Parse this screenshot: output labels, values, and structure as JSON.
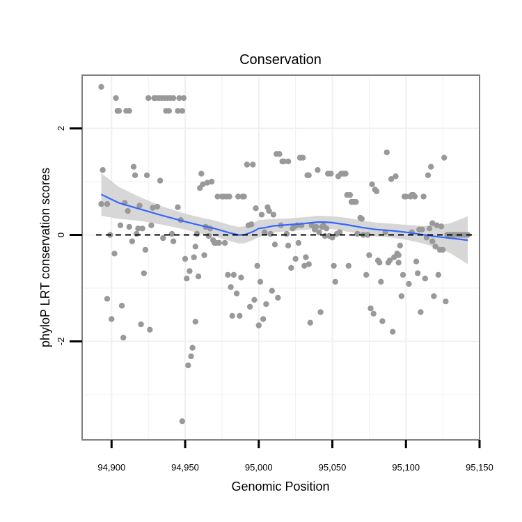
{
  "chart_data": {
    "type": "scatter",
    "title": "Conservation",
    "xlabel": "Genomic Position",
    "ylabel": "phyloP LRT conservation scores",
    "xlim": [
      94880,
      95150
    ],
    "ylim": [
      -3.85,
      3.0
    ],
    "x_ticks": [
      94900,
      94950,
      95000,
      95050,
      95100,
      95150
    ],
    "x_tick_labels": [
      "94,900",
      "94,950",
      "95,000",
      "95,050",
      "95,100",
      "95,150"
    ],
    "y_ticks": [
      -2,
      0,
      2
    ],
    "y_tick_labels": [
      "-2",
      "0",
      "2"
    ],
    "grid": true,
    "reference_line": {
      "y": 0,
      "style": "dashed"
    },
    "colors": {
      "points": "#999999",
      "smooth_line": "#3366ff",
      "ribbon": "#d3d3d3",
      "panel_border": "#808080",
      "grid": "#f0f0f0"
    },
    "points": [
      [
        94893,
        2.78
      ],
      [
        94894,
        1.22
      ],
      [
        94893,
        0.58
      ],
      [
        94897,
        0.58
      ],
      [
        94897,
        -1.2
      ],
      [
        94899,
        0.0
      ],
      [
        94900,
        -1.58
      ],
      [
        94902,
        -0.35
      ],
      [
        94903,
        2.57
      ],
      [
        94904,
        2.33
      ],
      [
        94905,
        2.33
      ],
      [
        94906,
        0.18
      ],
      [
        94907,
        -1.33
      ],
      [
        94908,
        -1.93
      ],
      [
        94909,
        0.6
      ],
      [
        94910,
        2.33
      ],
      [
        94911,
        0.45
      ],
      [
        94912,
        2.33
      ],
      [
        94912,
        0.15
      ],
      [
        94914,
        -0.12
      ],
      [
        94915,
        1.28
      ],
      [
        94916,
        1.12
      ],
      [
        94917,
        0.02
      ],
      [
        94918,
        0.12
      ],
      [
        94919,
        0.55
      ],
      [
        94920,
        -1.68
      ],
      [
        94921,
        0.12
      ],
      [
        94922,
        -0.72
      ],
      [
        94923,
        -0.28
      ],
      [
        94924,
        1.12
      ],
      [
        94925,
        2.57
      ],
      [
        94926,
        -1.78
      ],
      [
        94927,
        0.18
      ],
      [
        94928,
        0.51
      ],
      [
        94929,
        2.57
      ],
      [
        94930,
        2.57
      ],
      [
        94931,
        0.53
      ],
      [
        94932,
        2.57
      ],
      [
        94933,
        1.02
      ],
      [
        94934,
        2.57
      ],
      [
        94935,
        -0.06
      ],
      [
        94936,
        2.57
      ],
      [
        94937,
        2.33
      ],
      [
        94938,
        2.57
      ],
      [
        94939,
        2.33
      ],
      [
        94940,
        2.57
      ],
      [
        94941,
        0.02
      ],
      [
        94942,
        2.57
      ],
      [
        94942,
        -0.12
      ],
      [
        94945,
        2.33
      ],
      [
        94945,
        0.52
      ],
      [
        94946,
        2.57
      ],
      [
        94947,
        0.28
      ],
      [
        94948,
        2.33
      ],
      [
        94949,
        2.57
      ],
      [
        94948,
        -3.5
      ],
      [
        94950,
        -0.45
      ],
      [
        94951,
        -0.82
      ],
      [
        94952,
        -2.45
      ],
      [
        94953,
        -0.68
      ],
      [
        94954,
        -2.28
      ],
      [
        94955,
        -2.12
      ],
      [
        94956,
        -0.42
      ],
      [
        94957,
        -1.63
      ],
      [
        94957,
        -0.22
      ],
      [
        94958,
        0.02
      ],
      [
        94959,
        -0.78
      ],
      [
        94960,
        0.88
      ],
      [
        94961,
        1.15
      ],
      [
        94962,
        0.95
      ],
      [
        94963,
        -0.38
      ],
      [
        94964,
        0.15
      ],
      [
        94965,
        0.98
      ],
      [
        94966,
        -0.02
      ],
      [
        94967,
        0.12
      ],
      [
        94968,
        1.0
      ],
      [
        94969,
        -0.1
      ],
      [
        94970,
        -0.15
      ],
      [
        94971,
        -0.15
      ],
      [
        94972,
        0.72
      ],
      [
        94973,
        -0.15
      ],
      [
        94975,
        0.72
      ],
      [
        94976,
        0.72
      ],
      [
        94977,
        -0.15
      ],
      [
        94978,
        0.72
      ],
      [
        94979,
        -0.75
      ],
      [
        94980,
        0.72
      ],
      [
        94981,
        -0.98
      ],
      [
        94982,
        -1.52
      ],
      [
        94983,
        -0.75
      ],
      [
        94985,
        -1.1
      ],
      [
        94986,
        0.72
      ],
      [
        94987,
        -1.52
      ],
      [
        94988,
        -0.8
      ],
      [
        94989,
        0.72
      ],
      [
        94990,
        0.72
      ],
      [
        94992,
        1.32
      ],
      [
        94993,
        0.18
      ],
      [
        94994,
        -1.35
      ],
      [
        94995,
        0.2
      ],
      [
        94996,
        1.32
      ],
      [
        94997,
        -1.22
      ],
      [
        94998,
        0.5
      ],
      [
        94999,
        -0.58
      ],
      [
        95000,
        -1.7
      ],
      [
        95001,
        -0.88
      ],
      [
        95002,
        0.38
      ],
      [
        95003,
        -1.58
      ],
      [
        95004,
        0.05
      ],
      [
        95005,
        -1.3
      ],
      [
        95006,
        0.52
      ],
      [
        95007,
        0.45
      ],
      [
        95008,
        0.02
      ],
      [
        95009,
        -1.05
      ],
      [
        95010,
        0.38
      ],
      [
        95011,
        -0.18
      ],
      [
        95012,
        1.52
      ],
      [
        95013,
        -1.18
      ],
      [
        95014,
        1.52
      ],
      [
        95015,
        0.18
      ],
      [
        95016,
        1.38
      ],
      [
        95017,
        1.38
      ],
      [
        95019,
        0.02
      ],
      [
        95020,
        -0.2
      ],
      [
        95020,
        1.38
      ],
      [
        95022,
        -0.62
      ],
      [
        95023,
        0.12
      ],
      [
        95024,
        0.15
      ],
      [
        95025,
        -0.45
      ],
      [
        95026,
        0.18
      ],
      [
        95027,
        -0.15
      ],
      [
        95028,
        1.45
      ],
      [
        95029,
        0.18
      ],
      [
        95030,
        1.45
      ],
      [
        95031,
        -0.58
      ],
      [
        95032,
        -0.42
      ],
      [
        95033,
        1.12
      ],
      [
        95034,
        -0.55
      ],
      [
        95034,
        1.12
      ],
      [
        95035,
        -1.65
      ],
      [
        95036,
        0.18
      ],
      [
        95038,
        0.1
      ],
      [
        95039,
        0.15
      ],
      [
        95040,
        1.22
      ],
      [
        95041,
        0.05
      ],
      [
        95042,
        -1.45
      ],
      [
        95043,
        0.15
      ],
      [
        95044,
        0.18
      ],
      [
        95045,
        -0.02
      ],
      [
        95046,
        0.12
      ],
      [
        95047,
        1.15
      ],
      [
        95048,
        -0.02
      ],
      [
        95049,
        1.15
      ],
      [
        95050,
        -0.05
      ],
      [
        95051,
        -0.58
      ],
      [
        95052,
        -0.88
      ],
      [
        95053,
        0.02
      ],
      [
        95054,
        1.1
      ],
      [
        95055,
        0.05
      ],
      [
        95056,
        1.15
      ],
      [
        95057,
        1.15
      ],
      [
        95058,
        1.15
      ],
      [
        95059,
        1.15
      ],
      [
        95060,
        0.75
      ],
      [
        95061,
        -0.58
      ],
      [
        95062,
        0.75
      ],
      [
        95063,
        0.62
      ],
      [
        95064,
        0.62
      ],
      [
        95065,
        0.62
      ],
      [
        95066,
        0.62
      ],
      [
        95067,
        0.02
      ],
      [
        95069,
        0.32
      ],
      [
        95070,
        0.3
      ],
      [
        95071,
        0.0
      ],
      [
        95073,
        -0.75
      ],
      [
        95074,
        0.0
      ],
      [
        95075,
        -0.38
      ],
      [
        95076,
        -1.38
      ],
      [
        95077,
        0.95
      ],
      [
        95078,
        -1.48
      ],
      [
        95079,
        0.85
      ],
      [
        95080,
        0.82
      ],
      [
        95081,
        -0.48
      ],
      [
        95082,
        -0.52
      ],
      [
        95083,
        -0.88
      ],
      [
        95084,
        -1.62
      ],
      [
        95086,
        0.05
      ],
      [
        95087,
        1.55
      ],
      [
        95088,
        -0.52
      ],
      [
        95089,
        -0.48
      ],
      [
        95090,
        1.05
      ],
      [
        95091,
        -1.82
      ],
      [
        95092,
        -0.42
      ],
      [
        95093,
        1.1
      ],
      [
        95094,
        -0.35
      ],
      [
        95095,
        -0.52
      ],
      [
        95095,
        -0.38
      ],
      [
        95096,
        -0.2
      ],
      [
        95097,
        -1.15
      ],
      [
        95098,
        -0.75
      ],
      [
        95099,
        0.72
      ],
      [
        95100,
        0.72
      ],
      [
        95102,
        -0.92
      ],
      [
        95103,
        0.72
      ],
      [
        95104,
        0.75
      ],
      [
        95104,
        0.05
      ],
      [
        95105,
        0.75
      ],
      [
        95106,
        0.72
      ],
      [
        95107,
        -0.5
      ],
      [
        95108,
        -0.72
      ],
      [
        95109,
        0.1
      ],
      [
        95110,
        -1.45
      ],
      [
        95111,
        0.1
      ],
      [
        95112,
        0.72
      ],
      [
        95113,
        -0.82
      ],
      [
        95114,
        -0.05
      ],
      [
        95115,
        1.12
      ],
      [
        95116,
        0.12
      ],
      [
        95117,
        1.28
      ],
      [
        95118,
        0.22
      ],
      [
        95118,
        -0.12
      ],
      [
        95119,
        -1.15
      ],
      [
        95120,
        -0.22
      ],
      [
        95121,
        0.18
      ],
      [
        95122,
        -0.75
      ],
      [
        95123,
        -0.28
      ],
      [
        95124,
        0.16
      ],
      [
        95125,
        -0.28
      ],
      [
        95126,
        1.45
      ],
      [
        95127,
        -1.25
      ],
      [
        95128,
        0.0
      ],
      [
        95130,
        0.0
      ],
      [
        95132,
        0.0
      ],
      [
        95134,
        0.0
      ],
      [
        95136,
        0.0
      ],
      [
        95138,
        0.0
      ],
      [
        95140,
        0.0
      ],
      [
        95142,
        0.0
      ]
    ],
    "smooth": [
      [
        94893,
        0.76
      ],
      [
        94905,
        0.6
      ],
      [
        94920,
        0.48
      ],
      [
        94935,
        0.36
      ],
      [
        94950,
        0.25
      ],
      [
        94960,
        0.18
      ],
      [
        94970,
        0.12
      ],
      [
        94980,
        0.04
      ],
      [
        94986,
        0.0
      ],
      [
        94990,
        0.0
      ],
      [
        94996,
        0.06
      ],
      [
        95000,
        0.12
      ],
      [
        95005,
        0.14
      ],
      [
        95010,
        0.17
      ],
      [
        95020,
        0.19
      ],
      [
        95030,
        0.21
      ],
      [
        95040,
        0.24
      ],
      [
        95045,
        0.24
      ],
      [
        95050,
        0.23
      ],
      [
        95060,
        0.19
      ],
      [
        95070,
        0.14
      ],
      [
        95080,
        0.1
      ],
      [
        95090,
        0.08
      ],
      [
        95100,
        0.05
      ],
      [
        95110,
        0.01
      ],
      [
        95120,
        -0.03
      ],
      [
        95130,
        -0.06
      ],
      [
        95142,
        -0.1
      ]
    ],
    "ribbon_upper": [
      [
        94893,
        1.16
      ],
      [
        94905,
        0.9
      ],
      [
        94920,
        0.7
      ],
      [
        94935,
        0.53
      ],
      [
        94950,
        0.4
      ],
      [
        94960,
        0.33
      ],
      [
        94970,
        0.27
      ],
      [
        94980,
        0.19
      ],
      [
        94986,
        0.15
      ],
      [
        94990,
        0.16
      ],
      [
        94996,
        0.22
      ],
      [
        95000,
        0.28
      ],
      [
        95010,
        0.3
      ],
      [
        95020,
        0.31
      ],
      [
        95030,
        0.33
      ],
      [
        95040,
        0.36
      ],
      [
        95050,
        0.35
      ],
      [
        95060,
        0.32
      ],
      [
        95070,
        0.27
      ],
      [
        95080,
        0.23
      ],
      [
        95090,
        0.21
      ],
      [
        95100,
        0.19
      ],
      [
        95110,
        0.17
      ],
      [
        95120,
        0.17
      ],
      [
        95130,
        0.22
      ],
      [
        95142,
        0.35
      ]
    ],
    "ribbon_lower": [
      [
        94893,
        0.36
      ],
      [
        94905,
        0.3
      ],
      [
        94920,
        0.26
      ],
      [
        94935,
        0.19
      ],
      [
        94950,
        0.1
      ],
      [
        94960,
        0.03
      ],
      [
        94970,
        -0.03
      ],
      [
        94980,
        -0.11
      ],
      [
        94986,
        -0.16
      ],
      [
        94990,
        -0.16
      ],
      [
        94996,
        -0.1
      ],
      [
        95000,
        -0.04
      ],
      [
        95010,
        0.04
      ],
      [
        95020,
        0.07
      ],
      [
        95030,
        0.09
      ],
      [
        95040,
        0.12
      ],
      [
        95050,
        0.11
      ],
      [
        95060,
        0.06
      ],
      [
        95070,
        0.01
      ],
      [
        95080,
        -0.03
      ],
      [
        95090,
        -0.05
      ],
      [
        95100,
        -0.09
      ],
      [
        95110,
        -0.15
      ],
      [
        95120,
        -0.23
      ],
      [
        95130,
        -0.34
      ],
      [
        95142,
        -0.55
      ]
    ]
  }
}
